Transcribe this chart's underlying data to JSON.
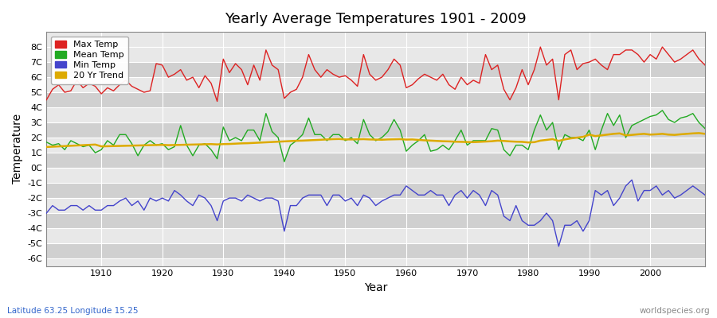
{
  "title": "Yearly Average Temperatures 1901 - 2009",
  "xlabel": "Year",
  "ylabel": "Temperature",
  "subtitle_left": "Latitude 63.25 Longitude 15.25",
  "subtitle_right": "worldspecies.org",
  "years": [
    1901,
    1902,
    1903,
    1904,
    1905,
    1906,
    1907,
    1908,
    1909,
    1910,
    1911,
    1912,
    1913,
    1914,
    1915,
    1916,
    1917,
    1918,
    1919,
    1920,
    1921,
    1922,
    1923,
    1924,
    1925,
    1926,
    1927,
    1928,
    1929,
    1930,
    1931,
    1932,
    1933,
    1934,
    1935,
    1936,
    1937,
    1938,
    1939,
    1940,
    1941,
    1942,
    1943,
    1944,
    1945,
    1946,
    1947,
    1948,
    1949,
    1950,
    1951,
    1952,
    1953,
    1954,
    1955,
    1956,
    1957,
    1958,
    1959,
    1960,
    1961,
    1962,
    1963,
    1964,
    1965,
    1966,
    1967,
    1968,
    1969,
    1970,
    1971,
    1972,
    1973,
    1974,
    1975,
    1976,
    1977,
    1978,
    1979,
    1980,
    1981,
    1982,
    1983,
    1984,
    1985,
    1986,
    1987,
    1988,
    1989,
    1990,
    1991,
    1992,
    1993,
    1994,
    1995,
    1996,
    1997,
    1998,
    1999,
    2000,
    2001,
    2002,
    2003,
    2004,
    2005,
    2006,
    2007,
    2008,
    2009
  ],
  "max_temp": [
    4.5,
    5.2,
    5.5,
    5.0,
    5.1,
    5.8,
    5.3,
    5.6,
    5.4,
    4.9,
    5.3,
    5.1,
    5.5,
    5.8,
    5.4,
    5.2,
    5.0,
    5.1,
    6.9,
    6.8,
    6.0,
    6.2,
    6.5,
    5.8,
    6.0,
    5.3,
    6.1,
    5.6,
    4.4,
    7.2,
    6.3,
    6.9,
    6.5,
    5.5,
    6.8,
    5.8,
    7.8,
    6.8,
    6.5,
    4.6,
    5.0,
    5.2,
    6.0,
    7.5,
    6.5,
    6.0,
    6.5,
    6.2,
    6.0,
    6.1,
    5.8,
    5.4,
    7.5,
    6.2,
    5.8,
    6.0,
    6.5,
    7.2,
    6.8,
    5.3,
    5.5,
    5.9,
    6.2,
    6.0,
    5.8,
    6.2,
    5.5,
    5.2,
    6.0,
    5.5,
    5.8,
    5.6,
    7.5,
    6.5,
    6.8,
    5.2,
    4.5,
    5.3,
    6.5,
    5.5,
    6.5,
    8.0,
    6.8,
    7.2,
    4.5,
    7.5,
    7.8,
    6.5,
    6.9,
    7.0,
    7.2,
    6.8,
    6.5,
    7.5,
    7.5,
    7.8,
    7.8,
    7.5,
    7.0,
    7.5,
    7.2,
    8.0,
    7.5,
    7.0,
    7.2,
    7.5,
    7.8,
    7.2,
    6.8
  ],
  "mean_temp": [
    1.7,
    1.5,
    1.6,
    1.2,
    1.8,
    1.6,
    1.4,
    1.5,
    1.0,
    1.2,
    1.8,
    1.5,
    2.2,
    2.2,
    1.6,
    0.8,
    1.5,
    1.8,
    1.5,
    1.6,
    1.2,
    1.4,
    2.8,
    1.5,
    0.8,
    1.5,
    1.6,
    1.2,
    0.6,
    2.7,
    1.8,
    2.0,
    1.8,
    2.5,
    2.5,
    1.8,
    3.6,
    2.4,
    2.0,
    0.4,
    1.5,
    1.8,
    2.2,
    3.3,
    2.2,
    2.2,
    1.8,
    2.2,
    2.2,
    1.8,
    2.0,
    1.6,
    3.2,
    2.2,
    1.8,
    2.0,
    2.4,
    3.2,
    2.5,
    1.1,
    1.5,
    1.8,
    2.2,
    1.1,
    1.2,
    1.5,
    1.2,
    1.8,
    2.5,
    1.5,
    1.8,
    1.8,
    1.8,
    2.6,
    2.5,
    1.2,
    0.8,
    1.5,
    1.5,
    1.2,
    2.5,
    3.5,
    2.5,
    3.0,
    1.2,
    2.2,
    2.0,
    2.0,
    1.8,
    2.5,
    1.2,
    2.5,
    3.6,
    2.8,
    3.5,
    2.0,
    2.8,
    3.0,
    3.2,
    3.4,
    3.5,
    3.8,
    3.2,
    3.0,
    3.3,
    3.4,
    3.6,
    3.0,
    2.6
  ],
  "min_temp": [
    -3.0,
    -2.5,
    -2.8,
    -2.8,
    -2.5,
    -2.5,
    -2.8,
    -2.5,
    -2.8,
    -2.8,
    -2.5,
    -2.5,
    -2.2,
    -2.0,
    -2.5,
    -2.2,
    -2.8,
    -2.0,
    -2.2,
    -2.0,
    -2.2,
    -1.5,
    -1.8,
    -2.2,
    -2.5,
    -1.8,
    -2.0,
    -2.5,
    -3.5,
    -2.2,
    -2.0,
    -2.0,
    -2.2,
    -1.8,
    -2.0,
    -2.2,
    -2.0,
    -2.0,
    -2.2,
    -4.2,
    -2.5,
    -2.5,
    -2.0,
    -1.8,
    -1.8,
    -1.8,
    -2.5,
    -1.8,
    -1.8,
    -2.2,
    -2.0,
    -2.5,
    -1.8,
    -2.0,
    -2.5,
    -2.2,
    -2.0,
    -1.8,
    -1.8,
    -1.2,
    -1.5,
    -1.8,
    -1.8,
    -1.5,
    -1.8,
    -1.8,
    -2.5,
    -1.8,
    -1.5,
    -2.0,
    -1.5,
    -1.8,
    -2.5,
    -1.5,
    -1.8,
    -3.2,
    -3.5,
    -2.5,
    -3.5,
    -3.8,
    -3.8,
    -3.5,
    -3.0,
    -3.5,
    -5.2,
    -3.8,
    -3.8,
    -3.5,
    -4.2,
    -3.5,
    -1.5,
    -1.8,
    -1.5,
    -2.5,
    -2.0,
    -1.2,
    -0.8,
    -2.2,
    -1.5,
    -1.5,
    -1.2,
    -1.8,
    -1.5,
    -2.0,
    -1.8,
    -1.5,
    -1.2,
    -1.5,
    -1.8
  ],
  "trend": [
    1.38,
    1.4,
    1.42,
    1.44,
    1.46,
    1.48,
    1.5,
    1.52,
    1.54,
    1.42,
    1.43,
    1.44,
    1.45,
    1.46,
    1.47,
    1.48,
    1.49,
    1.5,
    1.51,
    1.52,
    1.5,
    1.51,
    1.52,
    1.53,
    1.54,
    1.55,
    1.56,
    1.57,
    1.55,
    1.57,
    1.58,
    1.6,
    1.62,
    1.63,
    1.65,
    1.67,
    1.69,
    1.71,
    1.73,
    1.75,
    1.77,
    1.79,
    1.8,
    1.82,
    1.84,
    1.86,
    1.88,
    1.9,
    1.91,
    1.88,
    1.88,
    1.89,
    1.9,
    1.88,
    1.87,
    1.86,
    1.88,
    1.89,
    1.9,
    1.87,
    1.88,
    1.85,
    1.82,
    1.8,
    1.78,
    1.76,
    1.75,
    1.73,
    1.72,
    1.71,
    1.7,
    1.72,
    1.74,
    1.76,
    1.8,
    1.78,
    1.75,
    1.73,
    1.72,
    1.68,
    1.7,
    1.8,
    1.85,
    1.9,
    1.78,
    1.88,
    1.95,
    2.0,
    2.05,
    2.2,
    2.1,
    2.15,
    2.2,
    2.25,
    2.28,
    2.15,
    2.18,
    2.22,
    2.25,
    2.2,
    2.22,
    2.25,
    2.2,
    2.18,
    2.22,
    2.25,
    2.28,
    2.3,
    2.25
  ],
  "max_color": "#dd2222",
  "mean_color": "#22aa22",
  "min_color": "#4444cc",
  "trend_color": "#ddaa00",
  "plot_bg_light": "#e8e8e8",
  "plot_bg_dark": "#d0d0d0",
  "fig_bg": "#ffffff",
  "grid_color": "#ffffff",
  "ylim": [
    -6.5,
    9.0
  ],
  "yticks": [
    -6,
    -5,
    -4,
    -3,
    -2,
    -1,
    0,
    1,
    2,
    3,
    4,
    5,
    6,
    7,
    8
  ],
  "xticks": [
    1910,
    1920,
    1930,
    1940,
    1950,
    1960,
    1970,
    1980,
    1990,
    2000
  ],
  "xlim": [
    1901,
    2009
  ]
}
